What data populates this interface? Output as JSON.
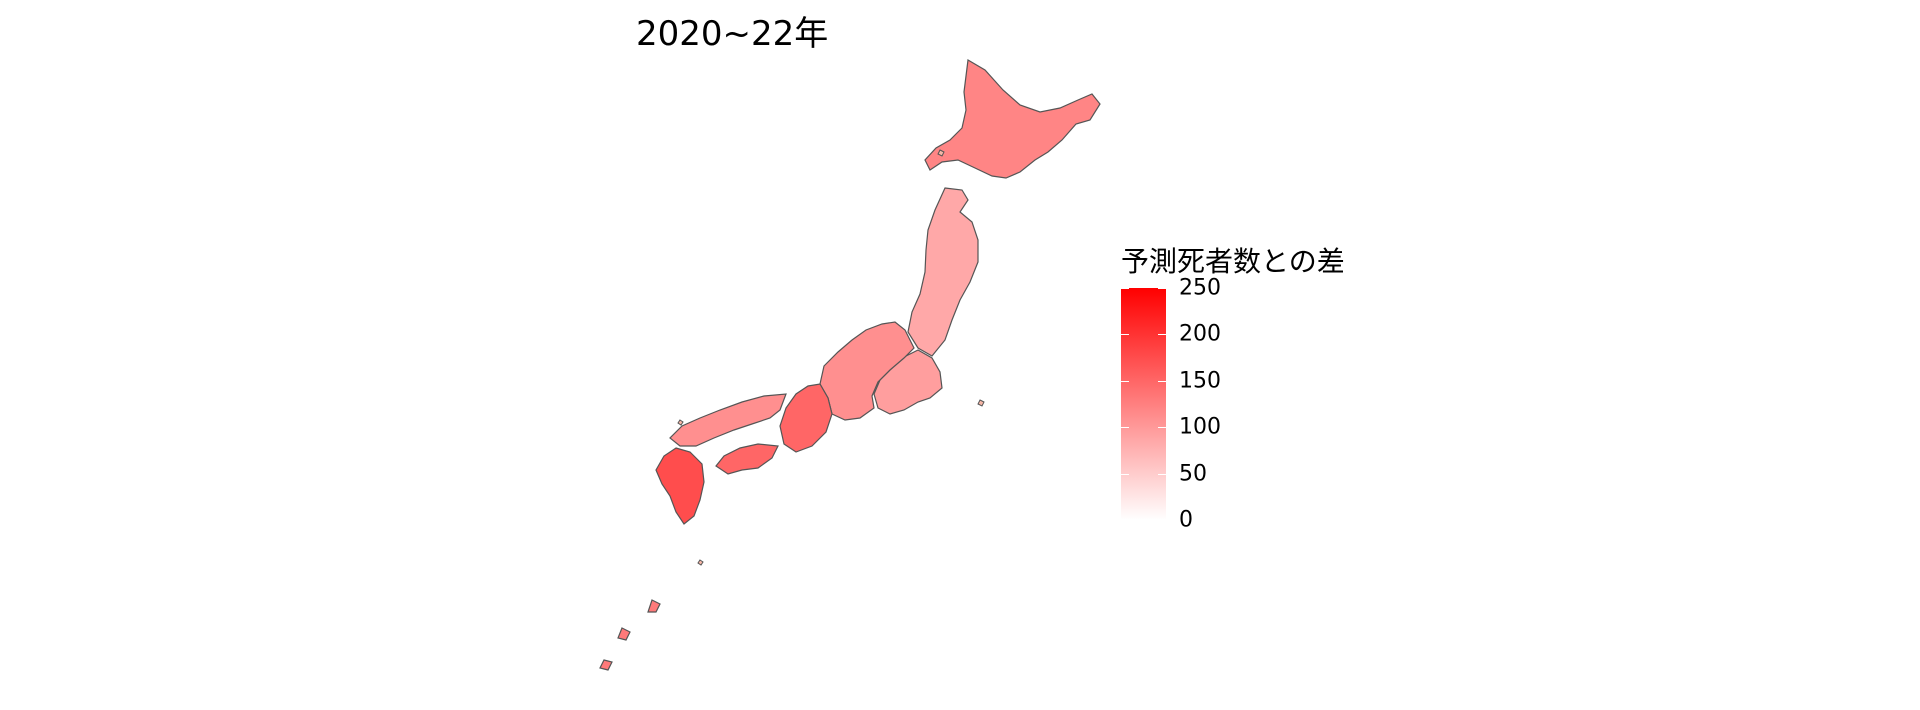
{
  "title": "2020~22年",
  "legend": {
    "title": "予測死者数との差",
    "ticks": [
      250,
      200,
      150,
      100,
      50,
      0
    ],
    "range": [
      0,
      250
    ],
    "color_low": "#ffffff",
    "color_high": "#ff0000"
  },
  "colors": {
    "border": "#555555",
    "background": "#ffffff"
  },
  "regions": [
    {
      "name": "hokkaido",
      "value": 120
    },
    {
      "name": "tohoku",
      "value": 85
    },
    {
      "name": "kanto",
      "value": 95
    },
    {
      "name": "chubu",
      "value": 110
    },
    {
      "name": "kinki",
      "value": 150
    },
    {
      "name": "chugoku",
      "value": 110
    },
    {
      "name": "shikoku",
      "value": 150
    },
    {
      "name": "kyushu",
      "value": 175
    },
    {
      "name": "okinawa",
      "value": 130
    }
  ]
}
